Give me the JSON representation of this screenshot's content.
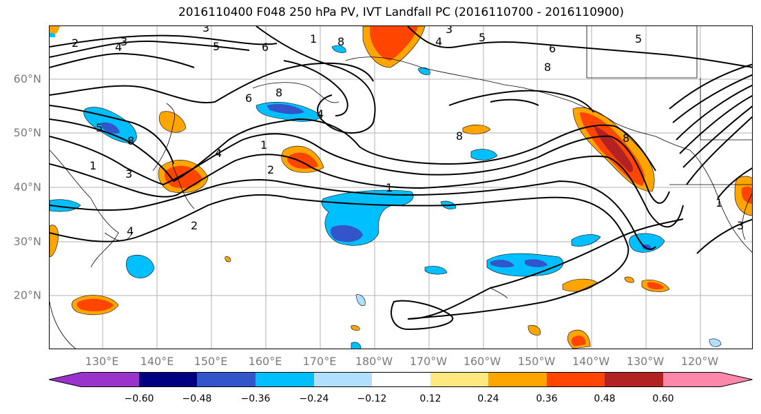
{
  "title": "2016110400 F048 250 hPa PV, IVT Landfall PC (2016110700 - 2016110900)",
  "lat_labels": [
    "60°N",
    "50°N",
    "40°N",
    "30°N",
    "20°N"
  ],
  "lon_labels": [
    "130°E",
    "140°E",
    "150°E",
    "160°E",
    "170°E",
    "180°W",
    "170°W",
    "160°W",
    "150°W",
    "140°W",
    "130°W",
    "120°W"
  ],
  "colorbar": {
    "tick_labels": [
      "−0.60",
      "−0.48",
      "−0.36",
      "−0.24",
      "−0.12",
      "0.12",
      "0.24",
      "0.36",
      "0.48",
      "0.60"
    ],
    "colors": [
      "#9933cc",
      "#000080",
      "#3355cc",
      "#00bfff",
      "#b0e0ff",
      "#ffffff",
      "#ffe97f",
      "#ffa500",
      "#ff4500",
      "#b22222",
      "#ff88aa"
    ]
  },
  "contour_labels": {
    "c1": "1",
    "c2": "2",
    "c3": "3",
    "c4": "4",
    "c5": "5",
    "c6": "6",
    "c8": "8"
  }
}
